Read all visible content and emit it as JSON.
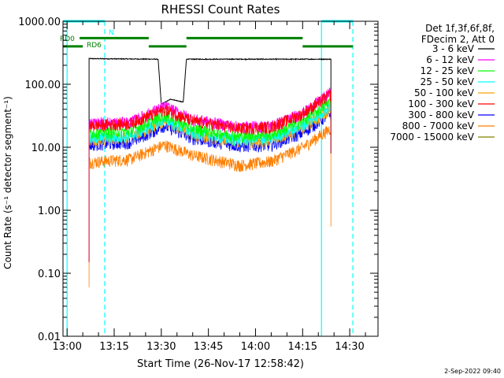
{
  "chart_data": {
    "type": "line",
    "title": "RHESSI Count Rates",
    "xlabel": "Start Time (26-Nov-17 12:58:42)",
    "ylabel": "Count Rate (s⁻¹ detector segment⁻¹)",
    "yscale": "log",
    "ylim": [
      0.01,
      1000
    ],
    "xlim": [
      "12:58:42",
      "14:39:00"
    ],
    "x_ticks": [
      "13:00",
      "13:15",
      "13:30",
      "13:45",
      "14:00",
      "14:15",
      "14:30"
    ],
    "y_ticks": [
      "0.01",
      "0.10",
      "1.00",
      "10.00",
      "100.00",
      "1000.00"
    ],
    "legend_header": [
      "Det 1f,3f,6f,8f,",
      "FDecim 2, Att 0"
    ],
    "legend_position": "right",
    "data_start": "13:07:00",
    "data_end": "14:24:00",
    "series": [
      {
        "name": "3 - 6 keV",
        "color": "#000000",
        "points": [
          [
            "13:07:00",
            255
          ],
          [
            "13:29:00",
            250
          ],
          [
            "13:30:00",
            48
          ],
          [
            "13:33:00",
            58
          ],
          [
            "13:37:00",
            52
          ],
          [
            "13:38:00",
            250
          ],
          [
            "14:00:00",
            250
          ],
          [
            "14:24:00",
            250
          ]
        ]
      },
      {
        "name": "6 - 12 keV",
        "color": "#ff00ff",
        "points": [
          [
            "13:07:00",
            24
          ],
          [
            "13:20:00",
            25
          ],
          [
            "13:31:00",
            45
          ],
          [
            "13:40:00",
            28
          ],
          [
            "13:55:00",
            21
          ],
          [
            "14:05:00",
            22
          ],
          [
            "14:15:00",
            35
          ],
          [
            "14:24:00",
            75
          ]
        ]
      },
      {
        "name": "12 - 25 keV",
        "color": "#00ff00",
        "points": [
          [
            "13:07:00",
            17
          ],
          [
            "13:20:00",
            18
          ],
          [
            "13:31:00",
            32
          ],
          [
            "13:40:00",
            20
          ],
          [
            "13:55:00",
            15
          ],
          [
            "14:05:00",
            16
          ],
          [
            "14:15:00",
            26
          ],
          [
            "14:24:00",
            55
          ]
        ]
      },
      {
        "name": "25 - 50 keV",
        "color": "#00ffff",
        "points": [
          [
            "13:07:00",
            14
          ],
          [
            "13:20:00",
            15
          ],
          [
            "13:31:00",
            28
          ],
          [
            "13:40:00",
            17
          ],
          [
            "13:55:00",
            13
          ],
          [
            "14:05:00",
            14
          ],
          [
            "14:15:00",
            22
          ],
          [
            "14:24:00",
            45
          ]
        ]
      },
      {
        "name": "50 - 100 keV",
        "color": "#ffa500",
        "points": [
          [
            "13:07:00",
            13
          ],
          [
            "13:20:00",
            14
          ],
          [
            "13:31:00",
            26
          ],
          [
            "13:40:00",
            16
          ],
          [
            "13:55:00",
            12
          ],
          [
            "14:05:00",
            13
          ],
          [
            "14:15:00",
            20
          ],
          [
            "14:24:00",
            42
          ]
        ]
      },
      {
        "name": "100 - 300 keV",
        "color": "#ff0000",
        "points": [
          [
            "13:07:00",
            22
          ],
          [
            "13:20:00",
            24
          ],
          [
            "13:31:00",
            40
          ],
          [
            "13:40:00",
            26
          ],
          [
            "13:55:00",
            20
          ],
          [
            "14:05:00",
            21
          ],
          [
            "14:15:00",
            34
          ],
          [
            "14:24:00",
            70
          ]
        ]
      },
      {
        "name": "300 - 800 keV",
        "color": "#0000ff",
        "points": [
          [
            "13:07:00",
            11
          ],
          [
            "13:20:00",
            12
          ],
          [
            "13:31:00",
            22
          ],
          [
            "13:40:00",
            14
          ],
          [
            "13:55:00",
            10.5
          ],
          [
            "14:05:00",
            11
          ],
          [
            "14:15:00",
            17
          ],
          [
            "14:24:00",
            35
          ]
        ]
      },
      {
        "name": "800 - 7000 keV",
        "color": "#ff7f00",
        "points": [
          [
            "13:07:00",
            5.8
          ],
          [
            "13:20:00",
            6.5
          ],
          [
            "13:31:00",
            11
          ],
          [
            "13:40:00",
            7.5
          ],
          [
            "13:55:00",
            5.2
          ],
          [
            "14:05:00",
            6
          ],
          [
            "14:15:00",
            10
          ],
          [
            "14:24:00",
            20
          ]
        ]
      },
      {
        "name": "7000 - 15000 keV",
        "color": "#808000",
        "points": []
      }
    ],
    "attenuator_bars": [
      {
        "label": "",
        "color": "#00ffff",
        "level": 1000,
        "segments": [
          [
            "12:58:42",
            "13:12:00"
          ],
          [
            "14:21:00",
            "14:31:00"
          ]
        ]
      },
      {
        "label": "N",
        "color": "#00ffff",
        "level": 600,
        "segments": []
      },
      {
        "label": "RD0",
        "color": "#008000",
        "level": 540,
        "segments": [
          [
            "13:04:00",
            "13:26:00"
          ],
          [
            "13:38:00",
            "14:15:00"
          ]
        ]
      },
      {
        "label": "RD6",
        "color": "#008000",
        "level": 400,
        "segments": [
          [
            "12:58:42",
            "13:05:00"
          ],
          [
            "13:26:00",
            "13:38:00"
          ],
          [
            "14:15:00",
            "14:31:00"
          ]
        ]
      }
    ],
    "vlines": [
      {
        "time": "13:00:00",
        "color": "#00ffff",
        "style": "solid"
      },
      {
        "time": "13:12:00",
        "color": "#00ffff",
        "style": "dashed"
      },
      {
        "time": "14:21:00",
        "color": "#00ffff",
        "style": "solid"
      },
      {
        "time": "14:31:00",
        "color": "#00ffff",
        "style": "dashed"
      }
    ],
    "footer_timestamp": "2-Sep-2022 09:40"
  }
}
